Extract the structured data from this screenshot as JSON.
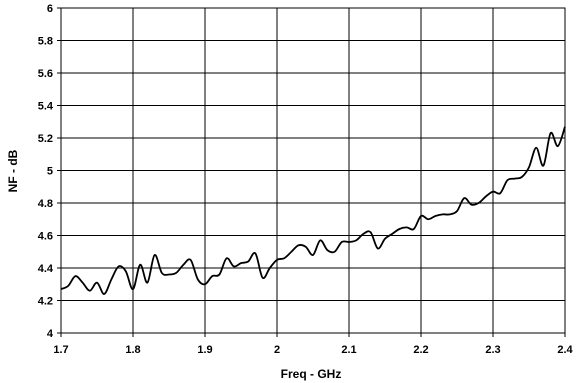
{
  "chart_data": {
    "type": "line",
    "title": "",
    "xlabel": "Freq - GHz",
    "ylabel": "NF - dB",
    "xlim": [
      1.7,
      2.4
    ],
    "ylim": [
      4,
      6
    ],
    "xticks": [
      "1.7",
      "1.8",
      "1.9",
      "2",
      "2.1",
      "2.2",
      "2.3",
      "2.4"
    ],
    "yticks": [
      "4",
      "4.2",
      "4.4",
      "4.6",
      "4.8",
      "5",
      "5.2",
      "5.4",
      "5.6",
      "5.8",
      "6"
    ],
    "grid": true,
    "legend": "none",
    "line_color": "#000000",
    "series": [
      {
        "x": [
          1.7,
          1.71,
          1.72,
          1.73,
          1.74,
          1.75,
          1.76,
          1.77,
          1.78,
          1.79,
          1.8,
          1.81,
          1.82,
          1.83,
          1.84,
          1.85,
          1.86,
          1.87,
          1.88,
          1.89,
          1.9,
          1.91,
          1.92,
          1.93,
          1.94,
          1.95,
          1.96,
          1.97,
          1.98,
          1.99,
          2.0,
          2.01,
          2.02,
          2.03,
          2.04,
          2.05,
          2.06,
          2.07,
          2.08,
          2.09,
          2.1,
          2.11,
          2.12,
          2.13,
          2.14,
          2.15,
          2.16,
          2.17,
          2.18,
          2.19,
          2.2,
          2.21,
          2.22,
          2.23,
          2.24,
          2.25,
          2.26,
          2.27,
          2.28,
          2.29,
          2.3,
          2.31,
          2.32,
          2.33,
          2.34,
          2.35,
          2.36,
          2.37,
          2.38,
          2.39,
          2.4
        ],
        "values": [
          4.27,
          4.29,
          4.35,
          4.31,
          4.26,
          4.31,
          4.24,
          4.33,
          4.41,
          4.38,
          4.27,
          4.42,
          4.31,
          4.48,
          4.37,
          4.36,
          4.37,
          4.42,
          4.45,
          4.33,
          4.3,
          4.35,
          4.36,
          4.46,
          4.41,
          4.43,
          4.44,
          4.49,
          4.34,
          4.4,
          4.45,
          4.46,
          4.5,
          4.54,
          4.53,
          4.48,
          4.57,
          4.51,
          4.5,
          4.56,
          4.56,
          4.57,
          4.61,
          4.62,
          4.52,
          4.58,
          4.61,
          4.64,
          4.65,
          4.64,
          4.72,
          4.7,
          4.72,
          4.73,
          4.73,
          4.75,
          4.83,
          4.79,
          4.8,
          4.84,
          4.87,
          4.86,
          4.94,
          4.95,
          4.96,
          5.02,
          5.14,
          5.03,
          5.23,
          5.15,
          5.27
        ]
      }
    ]
  }
}
